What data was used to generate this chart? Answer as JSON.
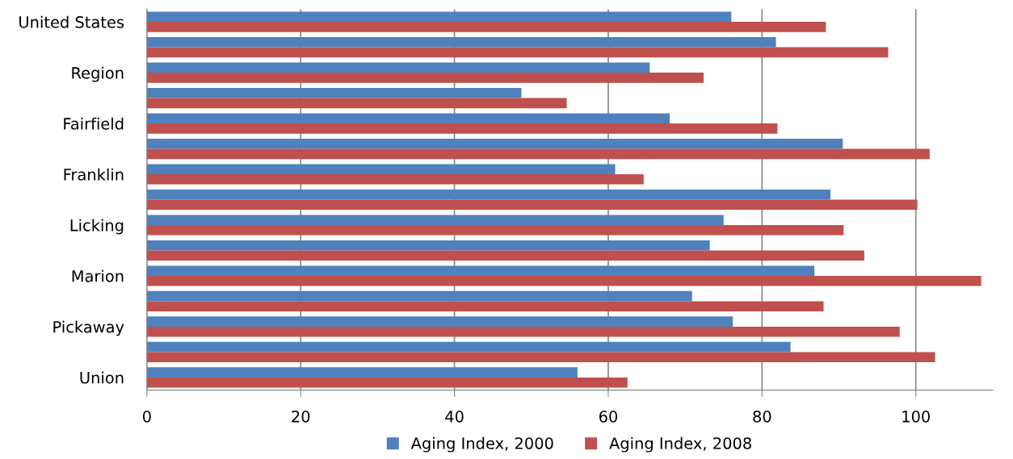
{
  "chart_data": {
    "type": "bar",
    "orientation": "horizontal",
    "categories": [
      "United States",
      null,
      "Region",
      null,
      "Fairfield",
      null,
      "Franklin",
      null,
      "Licking",
      null,
      "Marion",
      null,
      "Pickaway",
      null,
      "Union"
    ],
    "series": [
      {
        "name": "Aging Index, 2000",
        "color": "#4f81bd",
        "values": [
          76.0,
          81.8,
          65.4,
          48.7,
          68.0,
          90.5,
          60.9,
          88.9,
          75.0,
          73.2,
          86.8,
          70.9,
          76.2,
          83.7,
          56.0
        ]
      },
      {
        "name": "Aging Index, 2008",
        "color": "#c0504d",
        "values": [
          88.3,
          96.4,
          72.4,
          54.6,
          82.0,
          101.8,
          64.6,
          100.2,
          90.6,
          93.3,
          108.5,
          88.0,
          97.9,
          102.5,
          62.5
        ]
      }
    ],
    "xlim": [
      0,
      110
    ],
    "xticks": [
      0,
      20,
      40,
      60,
      80,
      100
    ],
    "grid": "x",
    "legend": "bottom"
  }
}
